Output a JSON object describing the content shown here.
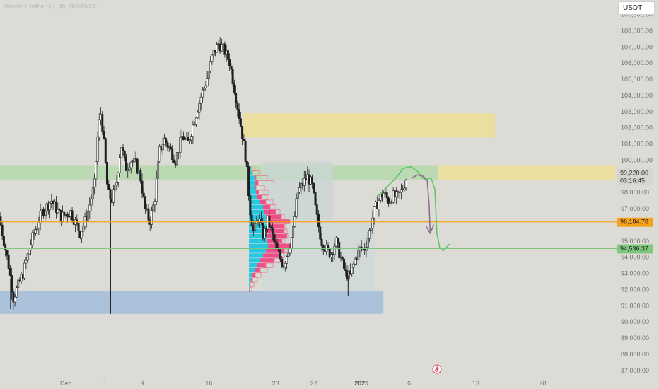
{
  "header": {
    "title": "Bitcoin / TetherUS, 4h, BINANCE",
    "currency_button": "USDT"
  },
  "colors": {
    "background": "#dcdbd6",
    "up_candle": "#ffffff",
    "down_candle": "#1f1f1f",
    "orange_line": "#f7a21b",
    "green_line": "#7ec97e",
    "green_zone": "#b7d9b0",
    "yellow_zone": "#ecdf9a",
    "blue_zone": "#a6bfdc",
    "vp_cyan": "#27c7df",
    "vp_magenta": "#ef4d87",
    "vp_pink_outline": "#e6808f",
    "drawing_green": "#63c463",
    "drawing_purple": "#8e6f8c"
  },
  "chart_data": {
    "type": "candlestick",
    "ylim": [
      86600,
      109900
    ],
    "y_ticks": [
      {
        "value": 87000,
        "label": "87,000.00"
      },
      {
        "value": 88000,
        "label": "88,000.00"
      },
      {
        "value": 89000,
        "label": "89,000.00"
      },
      {
        "value": 90000,
        "label": "90,000.00"
      },
      {
        "value": 91000,
        "label": "91,000.00"
      },
      {
        "value": 92000,
        "label": "92,000.00"
      },
      {
        "value": 93000,
        "label": "93,000.00"
      },
      {
        "value": 94000,
        "label": "94,000.00"
      },
      {
        "value": 95000,
        "label": "95,000.00"
      },
      {
        "value": 97000,
        "label": "97,000.00"
      },
      {
        "value": 98000,
        "label": "98,000.00"
      },
      {
        "value": 100000,
        "label": "100,000.00"
      },
      {
        "value": 101000,
        "label": "101,000.00"
      },
      {
        "value": 102000,
        "label": "102,000.00"
      },
      {
        "value": 103000,
        "label": "103,000.00"
      },
      {
        "value": 104000,
        "label": "104,000.00"
      },
      {
        "value": 105000,
        "label": "105,000.00"
      },
      {
        "value": 106000,
        "label": "106,000.00"
      },
      {
        "value": 107000,
        "label": "107,000.00"
      },
      {
        "value": 108000,
        "label": "108,000.00"
      },
      {
        "value": 109000,
        "label": "109,000.00"
      }
    ],
    "x_ticks": [
      {
        "label": "Dec",
        "day": 1,
        "bold": false
      },
      {
        "label": "5",
        "day": 5,
        "bold": false
      },
      {
        "label": "9",
        "day": 9,
        "bold": false
      },
      {
        "label": "16",
        "day": 16,
        "bold": false
      },
      {
        "label": "23",
        "day": 23,
        "bold": false
      },
      {
        "label": "27",
        "day": 27,
        "bold": false
      },
      {
        "label": "2025",
        "day": 32,
        "bold": true
      },
      {
        "label": "6",
        "day": 37,
        "bold": false
      },
      {
        "label": "13",
        "day": 44,
        "bold": false
      },
      {
        "label": "20",
        "day": 51,
        "bold": false
      }
    ],
    "x_days_domain": [
      -5.9,
      58.6
    ],
    "price_path": [
      {
        "day": -6.0,
        "price": 96500
      },
      {
        "day": -5.0,
        "price": 93500
      },
      {
        "day": -4.5,
        "price": 91500
      },
      {
        "day": -3.5,
        "price": 93000
      },
      {
        "day": -2.5,
        "price": 95200
      },
      {
        "day": -1.5,
        "price": 96800
      },
      {
        "day": -0.5,
        "price": 97500
      },
      {
        "day": 0.5,
        "price": 96500
      },
      {
        "day": 1.5,
        "price": 96800
      },
      {
        "day": 2.5,
        "price": 95500
      },
      {
        "day": 3.2,
        "price": 96500
      },
      {
        "day": 4.0,
        "price": 98500
      },
      {
        "day": 4.4,
        "price": 102000
      },
      {
        "day": 4.7,
        "price": 103000
      },
      {
        "day": 5.0,
        "price": 101000
      },
      {
        "day": 5.4,
        "price": 98000
      },
      {
        "day": 5.8,
        "price": 97500
      },
      {
        "day": 6.3,
        "price": 98500
      },
      {
        "day": 6.8,
        "price": 101000
      },
      {
        "day": 7.3,
        "price": 99500
      },
      {
        "day": 7.8,
        "price": 100000
      },
      {
        "day": 8.3,
        "price": 99800
      },
      {
        "day": 8.8,
        "price": 99000
      },
      {
        "day": 9.3,
        "price": 97000
      },
      {
        "day": 9.8,
        "price": 96200
      },
      {
        "day": 10.3,
        "price": 97500
      },
      {
        "day": 10.8,
        "price": 100500
      },
      {
        "day": 11.3,
        "price": 101300
      },
      {
        "day": 11.8,
        "price": 100800
      },
      {
        "day": 12.5,
        "price": 100000
      },
      {
        "day": 13.2,
        "price": 101500
      },
      {
        "day": 13.8,
        "price": 101000
      },
      {
        "day": 14.5,
        "price": 102500
      },
      {
        "day": 15.2,
        "price": 104000
      },
      {
        "day": 15.8,
        "price": 105000
      },
      {
        "day": 16.4,
        "price": 106500
      },
      {
        "day": 17.0,
        "price": 107200
      },
      {
        "day": 17.6,
        "price": 106800
      },
      {
        "day": 18.2,
        "price": 106000
      },
      {
        "day": 18.8,
        "price": 104000
      },
      {
        "day": 19.3,
        "price": 102300
      },
      {
        "day": 19.6,
        "price": 101200
      },
      {
        "day": 19.9,
        "price": 100000
      },
      {
        "day": 20.3,
        "price": 97000
      },
      {
        "day": 20.7,
        "price": 95500
      },
      {
        "day": 21.2,
        "price": 96500
      },
      {
        "day": 21.7,
        "price": 95300
      },
      {
        "day": 22.2,
        "price": 96300
      },
      {
        "day": 22.8,
        "price": 95000
      },
      {
        "day": 23.3,
        "price": 94200
      },
      {
        "day": 23.8,
        "price": 93500
      },
      {
        "day": 24.3,
        "price": 94400
      },
      {
        "day": 24.8,
        "price": 95500
      },
      {
        "day": 25.3,
        "price": 98000
      },
      {
        "day": 25.8,
        "price": 98500
      },
      {
        "day": 26.3,
        "price": 99000
      },
      {
        "day": 26.8,
        "price": 98500
      },
      {
        "day": 27.3,
        "price": 96500
      },
      {
        "day": 27.8,
        "price": 95000
      },
      {
        "day": 28.3,
        "price": 94500
      },
      {
        "day": 28.8,
        "price": 94200
      },
      {
        "day": 29.3,
        "price": 95000
      },
      {
        "day": 29.8,
        "price": 94000
      },
      {
        "day": 30.3,
        "price": 93000
      },
      {
        "day": 30.8,
        "price": 92800
      },
      {
        "day": 31.3,
        "price": 93800
      },
      {
        "day": 31.8,
        "price": 94500
      },
      {
        "day": 32.3,
        "price": 94500
      },
      {
        "day": 32.8,
        "price": 95500
      },
      {
        "day": 33.3,
        "price": 96800
      },
      {
        "day": 33.8,
        "price": 97500
      },
      {
        "day": 34.3,
        "price": 98000
      },
      {
        "day": 34.8,
        "price": 97500
      },
      {
        "day": 35.3,
        "price": 97800
      },
      {
        "day": 35.8,
        "price": 97700
      },
      {
        "day": 36.3,
        "price": 98200
      },
      {
        "day": 36.8,
        "price": 99100
      }
    ],
    "spike_lows": [
      {
        "day": 5.7,
        "price": 90500
      },
      {
        "day": 30.6,
        "price": 91600
      },
      {
        "day": -4.8,
        "price": 90800
      }
    ],
    "horizontal_levels": [
      {
        "name": "orange-level",
        "price": 96184.78,
        "label": "96,184.78",
        "color": "#f7a21b"
      },
      {
        "name": "green-level",
        "price": 94536.37,
        "label": "94,536.37",
        "color": "#7ec97e"
      }
    ],
    "current_price": {
      "price": 99220,
      "label": "99,220.00",
      "countdown": "03:16:45"
    },
    "zones": [
      {
        "name": "green-zone",
        "color": "#b7d9b0",
        "day_start": -5.9,
        "day_end": 40.0,
        "price_top": 99700,
        "price_bottom": 98750
      },
      {
        "name": "yellow-zone-right",
        "color": "#ecdf9a",
        "day_start": 40.0,
        "day_end": 58.6,
        "price_top": 99700,
        "price_bottom": 98750
      },
      {
        "name": "yellow-zone-upper",
        "color": "#ecdf9a",
        "day_start": 19.6,
        "day_end": 46.0,
        "price_top": 102900,
        "price_bottom": 101400
      },
      {
        "name": "blue-zone",
        "color": "#a6bfdc",
        "day_start": -5.9,
        "day_end": 34.3,
        "price_top": 91900,
        "price_bottom": 90500
      },
      {
        "name": "range-box-upper",
        "color": "#c9d6d3",
        "day_start": 21.5,
        "day_end": 29.0,
        "price_top": 99900,
        "price_bottom": 96300
      },
      {
        "name": "range-box-lower",
        "color": "#cfdad8",
        "day_start": 21.5,
        "day_end": 33.4,
        "price_top": 96300,
        "price_bottom": 91900
      }
    ],
    "volume_profile": {
      "day_start": 20.2,
      "price_low": 91800,
      "price_high": 99700,
      "bins": [
        {
          "price": 99500,
          "cyan": 0.3,
          "magenta": 0.0,
          "pink": 0.5
        },
        {
          "price": 99200,
          "cyan": 0.5,
          "magenta": 0.0,
          "pink": 1.0
        },
        {
          "price": 98900,
          "cyan": 0.8,
          "magenta": 0.2,
          "pink": 1.6
        },
        {
          "price": 98600,
          "cyan": 0.9,
          "magenta": 0.4,
          "pink": 2.2
        },
        {
          "price": 98300,
          "cyan": 0.8,
          "magenta": 0.2,
          "pink": 1.2
        },
        {
          "price": 98000,
          "cyan": 1.0,
          "magenta": 0.4,
          "pink": 1.4
        },
        {
          "price": 97700,
          "cyan": 1.2,
          "magenta": 0.6,
          "pink": 0.8
        },
        {
          "price": 97400,
          "cyan": 1.6,
          "magenta": 0.8,
          "pink": 1.0
        },
        {
          "price": 97100,
          "cyan": 2.0,
          "magenta": 1.0,
          "pink": 0.8
        },
        {
          "price": 96800,
          "cyan": 2.2,
          "magenta": 1.6,
          "pink": 0.6
        },
        {
          "price": 96500,
          "cyan": 2.4,
          "magenta": 2.2,
          "pink": 0.4
        },
        {
          "price": 96200,
          "cyan": 2.8,
          "magenta": 3.0,
          "pink": 0.0
        },
        {
          "price": 95900,
          "cyan": 2.6,
          "magenta": 2.4,
          "pink": 0.2
        },
        {
          "price": 95600,
          "cyan": 2.4,
          "magenta": 2.6,
          "pink": 0.4
        },
        {
          "price": 95300,
          "cyan": 2.6,
          "magenta": 2.8,
          "pink": 0.2
        },
        {
          "price": 95000,
          "cyan": 2.5,
          "magenta": 2.2,
          "pink": 0.4
        },
        {
          "price": 94700,
          "cyan": 2.7,
          "magenta": 3.2,
          "pink": 0.3
        },
        {
          "price": 94400,
          "cyan": 2.4,
          "magenta": 2.6,
          "pink": 0.4
        },
        {
          "price": 94100,
          "cyan": 2.0,
          "magenta": 2.4,
          "pink": 0.6
        },
        {
          "price": 93800,
          "cyan": 1.6,
          "magenta": 2.0,
          "pink": 0.8
        },
        {
          "price": 93500,
          "cyan": 1.2,
          "magenta": 1.2,
          "pink": 1.0
        },
        {
          "price": 93200,
          "cyan": 0.8,
          "magenta": 0.8,
          "pink": 1.0
        },
        {
          "price": 92900,
          "cyan": 0.5,
          "magenta": 0.4,
          "pink": 0.8
        },
        {
          "price": 92600,
          "cyan": 0.3,
          "magenta": 0.2,
          "pink": 0.7
        },
        {
          "price": 92300,
          "cyan": 0.2,
          "magenta": 0.0,
          "pink": 0.5
        },
        {
          "price": 92000,
          "cyan": 0.1,
          "magenta": 0.0,
          "pink": 0.3
        }
      ]
    },
    "drawings": {
      "green_path": [
        {
          "day": 33.6,
          "price": 97700
        },
        {
          "day": 34.6,
          "price": 98300
        },
        {
          "day": 35.6,
          "price": 98900
        },
        {
          "day": 36.4,
          "price": 99500
        },
        {
          "day": 37.2,
          "price": 99600
        },
        {
          "day": 37.9,
          "price": 99300
        },
        {
          "day": 38.6,
          "price": 98800
        },
        {
          "day": 39.3,
          "price": 98900
        },
        {
          "day": 39.7,
          "price": 98200
        },
        {
          "day": 39.9,
          "price": 95500
        },
        {
          "day": 40.2,
          "price": 94600
        },
        {
          "day": 40.6,
          "price": 94400
        },
        {
          "day": 41.2,
          "price": 94800
        }
      ],
      "purple_path": [
        {
          "day": 37.3,
          "price": 98900
        },
        {
          "day": 37.9,
          "price": 99100
        },
        {
          "day": 38.5,
          "price": 99000
        },
        {
          "day": 38.9,
          "price": 98700
        },
        {
          "day": 39.1,
          "price": 97200
        },
        {
          "day": 39.2,
          "price": 95500
        }
      ],
      "purple_arrow_tip": {
        "day": 39.2,
        "price": 95500
      }
    }
  }
}
